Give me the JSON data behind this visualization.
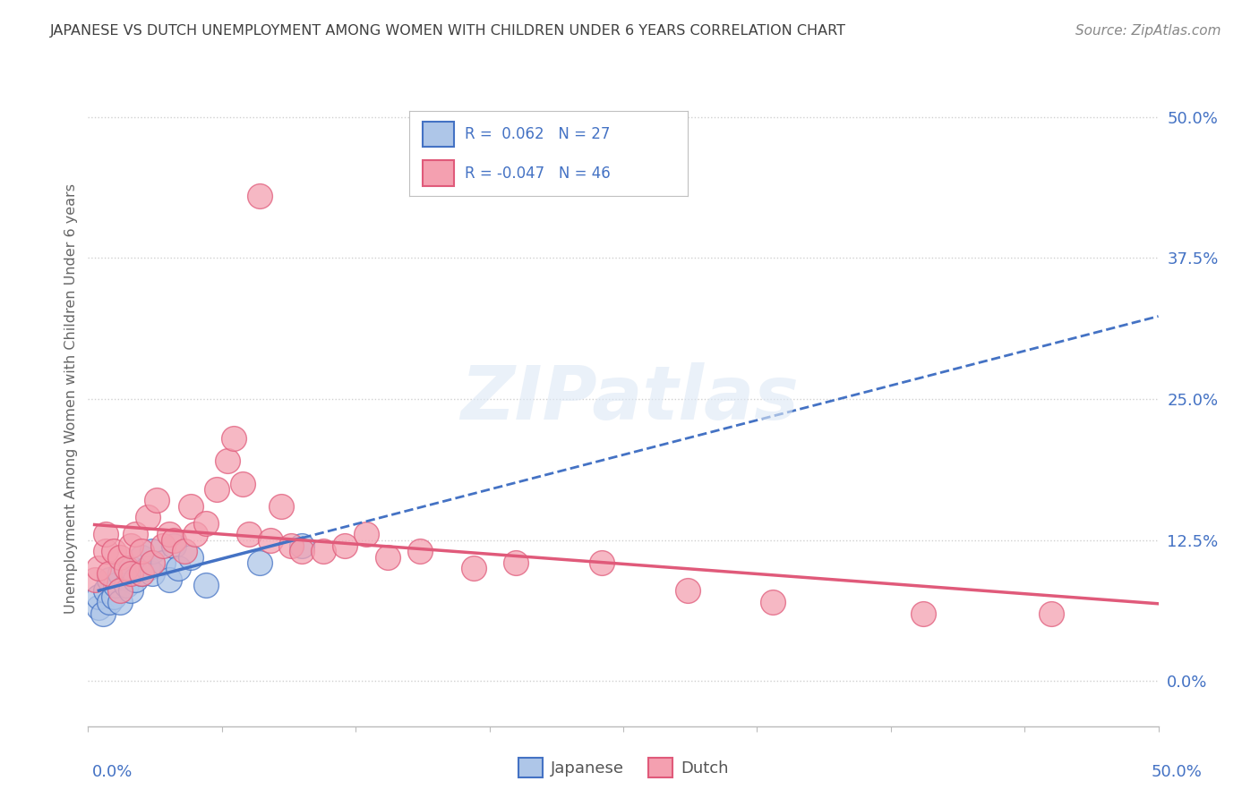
{
  "title": "JAPANESE VS DUTCH UNEMPLOYMENT AMONG WOMEN WITH CHILDREN UNDER 6 YEARS CORRELATION CHART",
  "source": "Source: ZipAtlas.com",
  "ylabel": "Unemployment Among Women with Children Under 6 years",
  "ytick_labels": [
    "0.0%",
    "12.5%",
    "25.0%",
    "37.5%",
    "50.0%"
  ],
  "ytick_values": [
    0,
    0.125,
    0.25,
    0.375,
    0.5
  ],
  "xlim": [
    0,
    0.5
  ],
  "ylim": [
    -0.04,
    0.54
  ],
  "color_japanese": "#aec6e8",
  "color_dutch": "#f4a0b0",
  "color_japanese_line": "#4472c4",
  "color_dutch_line": "#e05a7a",
  "color_axis_blue": "#4472c4",
  "color_title": "#404040",
  "background_color": "#ffffff",
  "grid_color": "#d0d0d0",
  "japanese_x": [
    0.005,
    0.005,
    0.007,
    0.008,
    0.01,
    0.01,
    0.012,
    0.013,
    0.015,
    0.015,
    0.018,
    0.02,
    0.02,
    0.022,
    0.025,
    0.025,
    0.028,
    0.03,
    0.03,
    0.035,
    0.038,
    0.04,
    0.042,
    0.048,
    0.055,
    0.08,
    0.1
  ],
  "japanese_y": [
    0.065,
    0.075,
    0.06,
    0.08,
    0.07,
    0.09,
    0.075,
    0.085,
    0.07,
    0.095,
    0.085,
    0.08,
    0.1,
    0.09,
    0.095,
    0.11,
    0.1,
    0.095,
    0.115,
    0.105,
    0.09,
    0.12,
    0.1,
    0.11,
    0.085,
    0.105,
    0.12
  ],
  "dutch_x": [
    0.003,
    0.005,
    0.008,
    0.008,
    0.01,
    0.012,
    0.015,
    0.015,
    0.018,
    0.02,
    0.02,
    0.022,
    0.025,
    0.025,
    0.028,
    0.03,
    0.032,
    0.035,
    0.038,
    0.04,
    0.045,
    0.048,
    0.05,
    0.055,
    0.06,
    0.065,
    0.068,
    0.072,
    0.075,
    0.08,
    0.085,
    0.09,
    0.095,
    0.1,
    0.11,
    0.12,
    0.13,
    0.14,
    0.155,
    0.18,
    0.2,
    0.24,
    0.28,
    0.32,
    0.39,
    0.45
  ],
  "dutch_y": [
    0.09,
    0.1,
    0.115,
    0.13,
    0.095,
    0.115,
    0.08,
    0.11,
    0.1,
    0.12,
    0.095,
    0.13,
    0.095,
    0.115,
    0.145,
    0.105,
    0.16,
    0.12,
    0.13,
    0.125,
    0.115,
    0.155,
    0.13,
    0.14,
    0.17,
    0.195,
    0.215,
    0.175,
    0.13,
    0.43,
    0.125,
    0.155,
    0.12,
    0.115,
    0.115,
    0.12,
    0.13,
    0.11,
    0.115,
    0.1,
    0.105,
    0.105,
    0.08,
    0.07,
    0.06,
    0.06
  ]
}
